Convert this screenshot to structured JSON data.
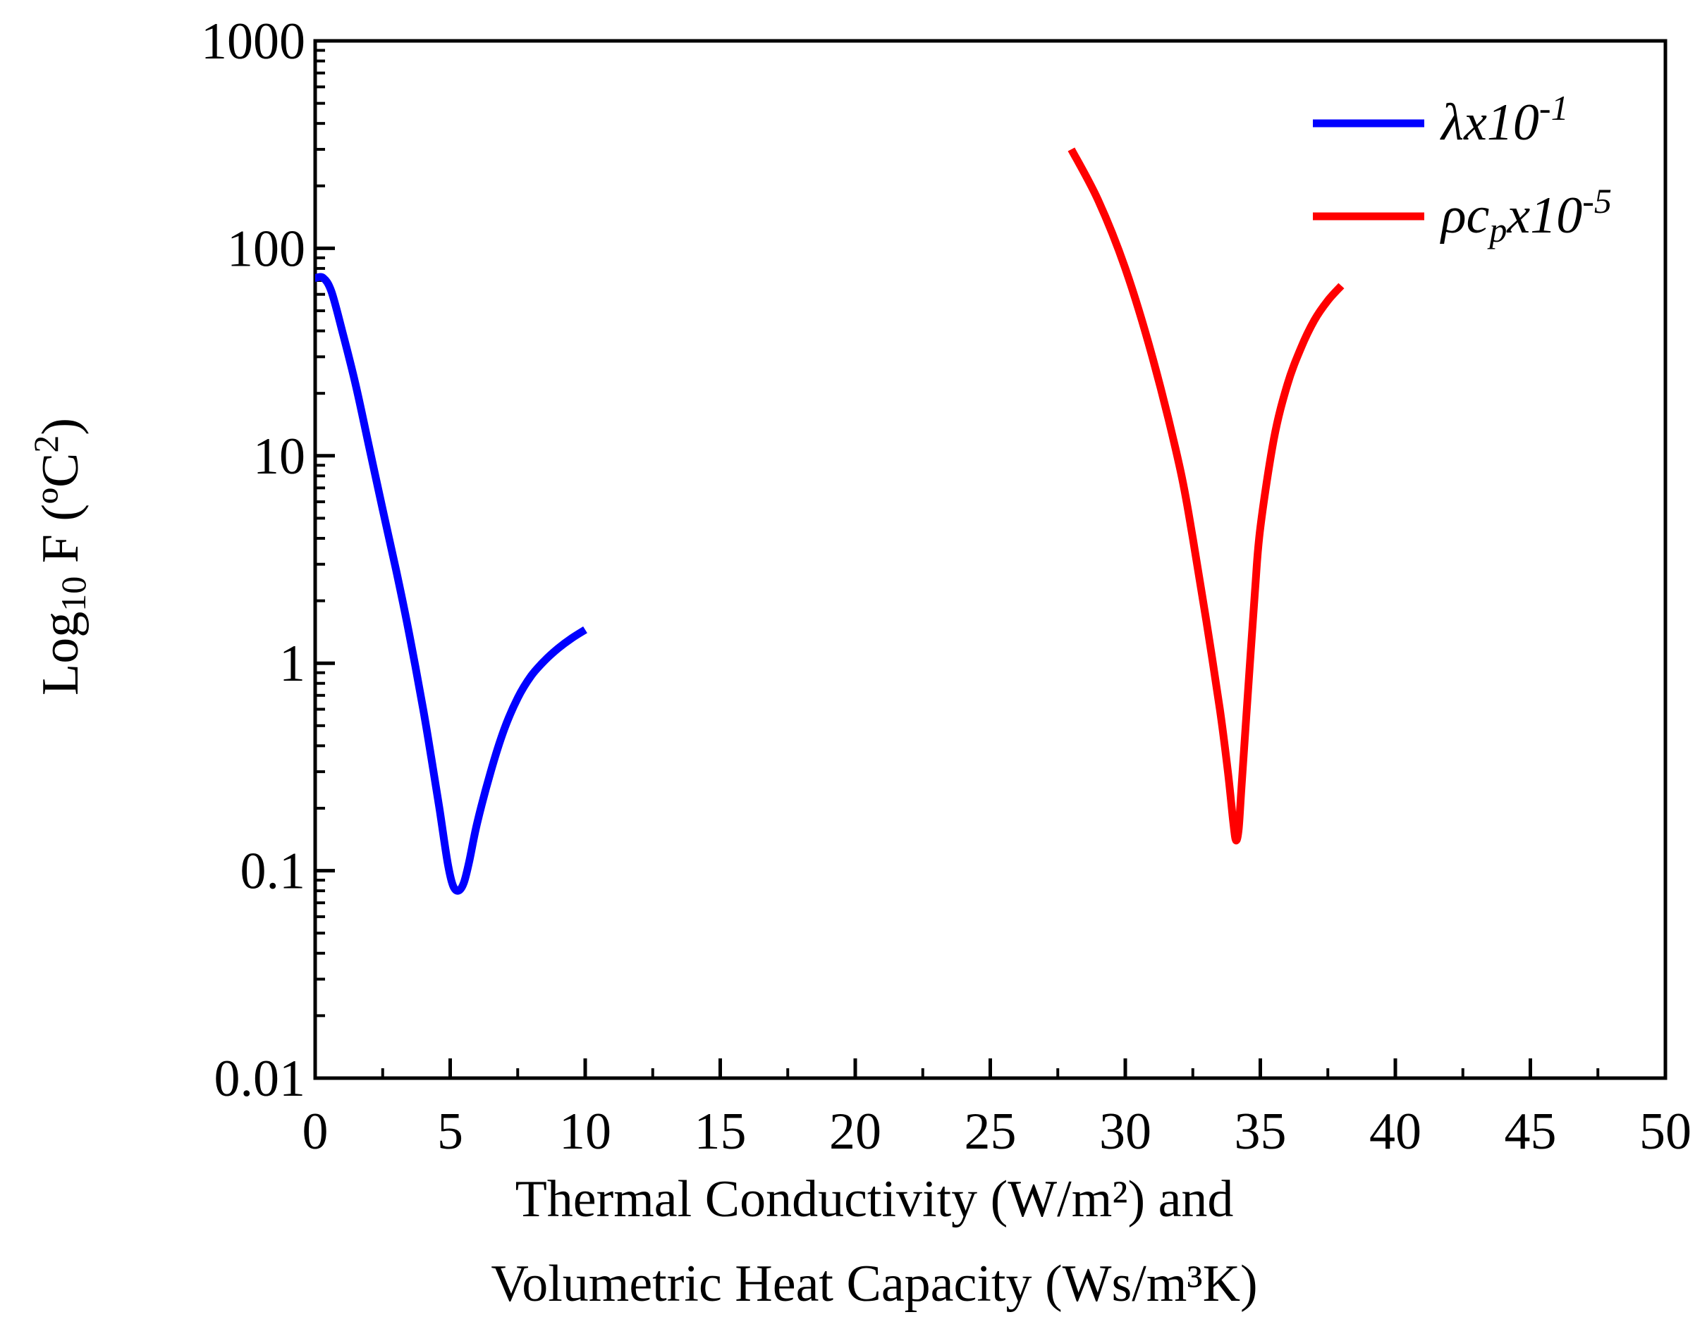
{
  "chart_data": {
    "type": "line",
    "title": "",
    "xlabel_lines": [
      "Thermal Conductivity (W/m²) and",
      "Volumetric Heat Capacity (Ws/m³K)"
    ],
    "ylabel": {
      "prefix": "Log",
      "subscript": "10",
      "rest": " F (ºC",
      "superscript": "2",
      "suffix": ")"
    },
    "xlim": [
      0,
      50
    ],
    "ylim": [
      0.01,
      1000
    ],
    "yscale": "log",
    "x_ticks": [
      "0",
      "5",
      "10",
      "15",
      "20",
      "25",
      "30",
      "35",
      "40",
      "45",
      "50"
    ],
    "y_ticks": [
      "0.01",
      "0.1",
      "1",
      "10",
      "100",
      "1000"
    ],
    "legend_position": "top-right",
    "series": [
      {
        "name": "lambda",
        "legend": {
          "symbol": "λ",
          "text": "x10",
          "sup": "-1"
        },
        "color": "#0000ff",
        "x": [
          0,
          0.3,
          0.6,
          1,
          1.5,
          2,
          2.5,
          3,
          3.5,
          4,
          4.3,
          4.6,
          4.9,
          5.1,
          5.3,
          5.5,
          5.7,
          6,
          6.5,
          7,
          7.5,
          8,
          8.5,
          9,
          9.5,
          10
        ],
        "y": [
          72,
          72,
          62,
          40,
          22,
          11,
          5.5,
          2.8,
          1.35,
          0.6,
          0.35,
          0.2,
          0.11,
          0.085,
          0.08,
          0.087,
          0.11,
          0.17,
          0.3,
          0.48,
          0.68,
          0.87,
          1.03,
          1.18,
          1.32,
          1.45
        ]
      },
      {
        "name": "rho_cp",
        "legend": {
          "symbol": "ρ",
          "text": "c",
          "sub": "p",
          "text2": "x10",
          "sup": "-5"
        },
        "color": "#ff0000",
        "x": [
          28,
          29,
          30,
          31,
          32,
          32.5,
          33,
          33.5,
          33.8,
          34,
          34.1,
          34.2,
          34.3,
          34.5,
          34.8,
          35,
          35.5,
          36,
          36.5,
          37,
          37.5,
          38
        ],
        "y": [
          300,
          170,
          80,
          30,
          9,
          4,
          1.6,
          0.6,
          0.3,
          0.17,
          0.14,
          0.16,
          0.25,
          0.6,
          2.2,
          4.5,
          12,
          22,
          33,
          45,
          56,
          66
        ]
      }
    ]
  }
}
